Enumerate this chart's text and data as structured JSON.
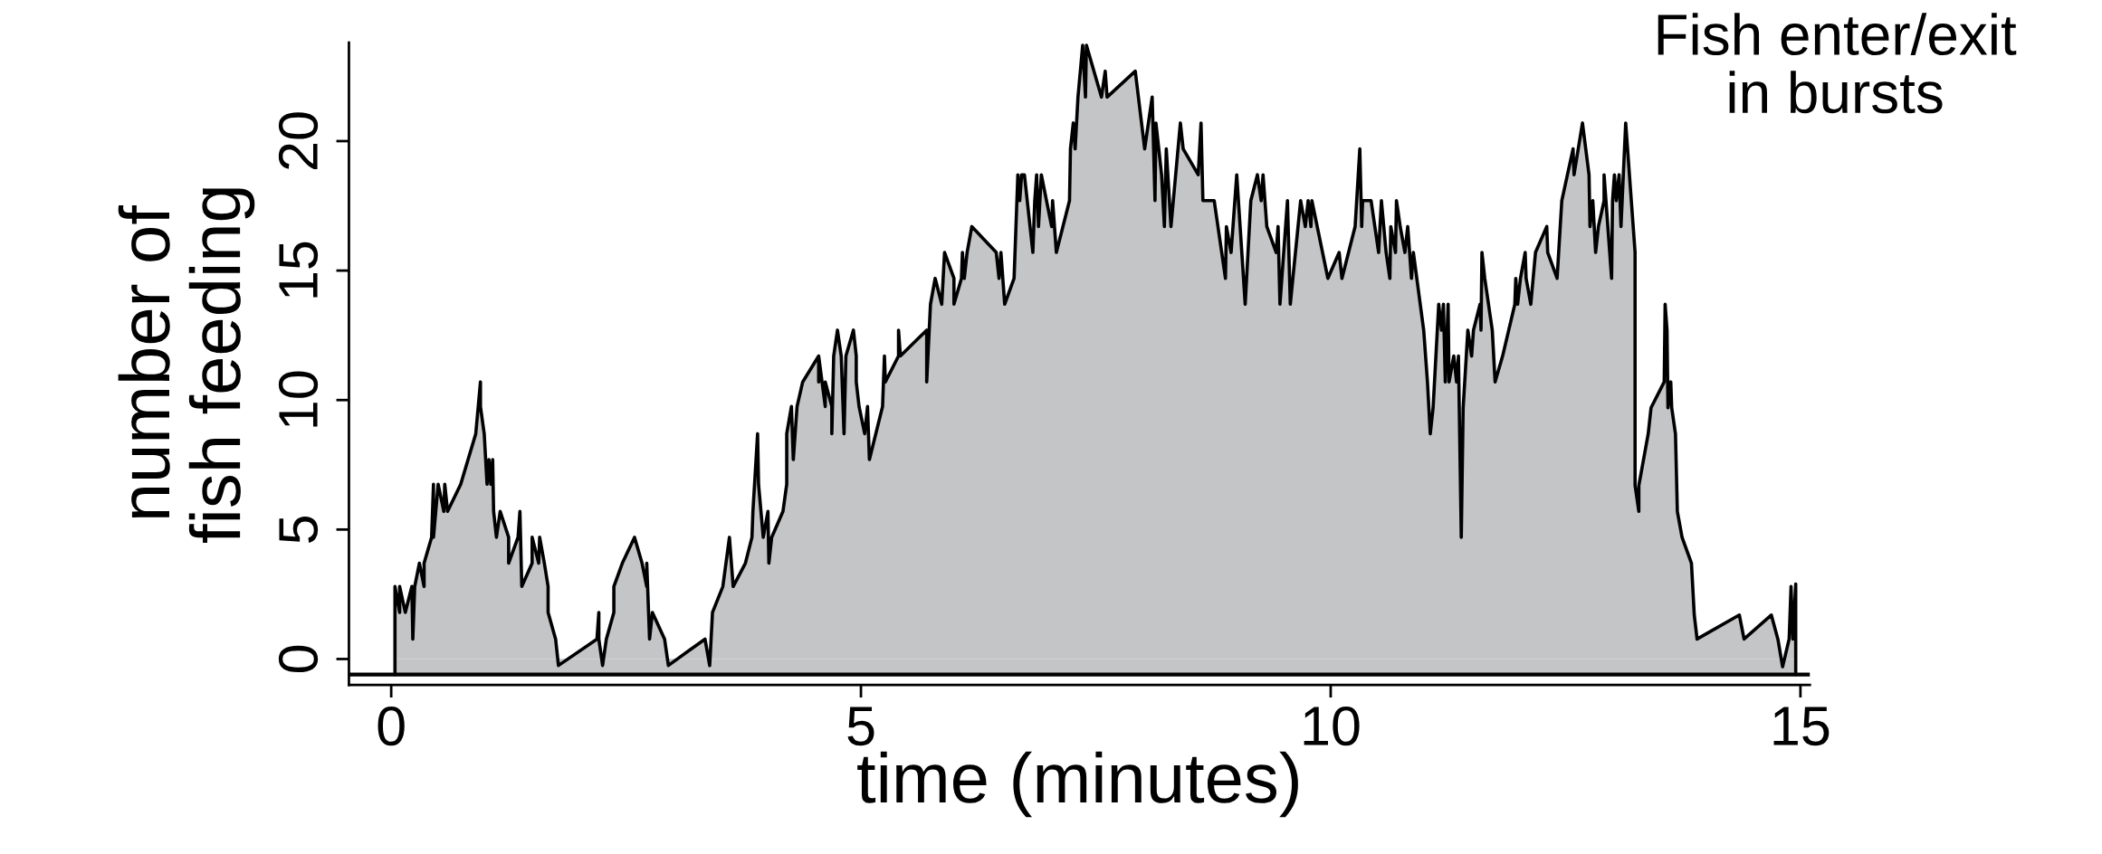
{
  "chart_data": {
    "type": "area",
    "xlabel": "time (minutes)",
    "ylabel": "number of\nfish feeding",
    "annotations": [
      "Fish enter/exit\nin bursts"
    ],
    "xlim": [
      -0.45,
      15.1
    ],
    "ylim": [
      -1.0,
      23.8
    ],
    "xticks": [
      0,
      5,
      10,
      15
    ],
    "yticks": [
      0,
      5,
      10,
      15,
      20
    ],
    "grid": false,
    "legend": false,
    "ref_lines": [
      {
        "axis": "y",
        "value": -0.6,
        "color": "#000000"
      }
    ],
    "bands": [
      {
        "axis": "y",
        "from": -0.6,
        "to": 0,
        "color": "#c4c5c7"
      }
    ],
    "series": [
      {
        "color": "#c4c5c7",
        "x": [
          0.04,
          0.04,
          0.09,
          0.09,
          0.15,
          0.22,
          0.23,
          0.25,
          0.3,
          0.35,
          0.35,
          0.43,
          0.45,
          0.45,
          0.5,
          0.56,
          0.57,
          0.6,
          0.74,
          0.9,
          0.95,
          0.95,
          0.99,
          1.02,
          1.04,
          1.06,
          1.08,
          1.09,
          1.12,
          1.16,
          1.25,
          1.25,
          1.35,
          1.37,
          1.39,
          1.5,
          1.5,
          1.57,
          1.58,
          1.63,
          1.67,
          1.67,
          1.75,
          1.78,
          2.19,
          2.21,
          2.21,
          2.25,
          2.29,
          2.37,
          2.37,
          2.46,
          2.59,
          2.67,
          2.72,
          2.72,
          2.75,
          2.78,
          2.91,
          2.95,
          3.34,
          3.39,
          3.42,
          3.53,
          3.6,
          3.64,
          3.77,
          3.84,
          3.85,
          3.9,
          3.91,
          3.96,
          4.01,
          4.02,
          4.05,
          4.17,
          4.21,
          4.21,
          4.26,
          4.28,
          4.32,
          4.38,
          4.55,
          4.55,
          4.55,
          4.62,
          4.62,
          4.69,
          4.69,
          4.71,
          4.75,
          4.79,
          4.82,
          4.84,
          4.92,
          4.95,
          4.95,
          4.98,
          5.04,
          5.07,
          5.09,
          5.23,
          5.25,
          5.26,
          5.4,
          5.4,
          5.42,
          5.7,
          5.7,
          5.74,
          5.79,
          5.86,
          5.89,
          5.99,
          5.99,
          6.07,
          6.08,
          6.1,
          6.13,
          6.18,
          6.44,
          6.47,
          6.49,
          6.53,
          6.63,
          6.67,
          6.69,
          6.71,
          6.74,
          6.83,
          6.85,
          6.87,
          6.89,
          6.92,
          7.03,
          7.04,
          7.08,
          7.22,
          7.23,
          7.26,
          7.28,
          7.31,
          7.36,
          7.39,
          7.4,
          7.56,
          7.6,
          7.62,
          7.92,
          8.02,
          8.1,
          8.13,
          8.14,
          8.2,
          8.23,
          8.25,
          8.3,
          8.4,
          8.43,
          8.59,
          8.62,
          8.64,
          8.76,
          8.88,
          8.89,
          8.94,
          9.0,
          9.09,
          9.15,
          9.22,
          9.26,
          9.28,
          9.32,
          9.42,
          9.44,
          9.46,
          9.54,
          9.57,
          9.68,
          9.73,
          9.76,
          9.79,
          9.8,
          9.97,
          10.09,
          10.12,
          10.26,
          10.31,
          10.33,
          10.34,
          10.43,
          10.51,
          10.54,
          10.59,
          10.63,
          10.64,
          10.69,
          10.7,
          10.74,
          10.79,
          10.82,
          10.86,
          10.88,
          10.99,
          11.03,
          11.06,
          11.09,
          11.15,
          11.18,
          11.2,
          11.22,
          11.25,
          11.26,
          11.31,
          11.34,
          11.36,
          11.39,
          11.41,
          11.46,
          11.5,
          11.52,
          11.59,
          11.6,
          11.61,
          11.64,
          11.72,
          11.75,
          11.83,
          11.96,
          11.97,
          11.99,
          12.02,
          12.07,
          12.08,
          12.13,
          12.18,
          12.3,
          12.31,
          12.41,
          12.46,
          12.52,
          12.58,
          12.59,
          12.68,
          12.75,
          12.76,
          12.79,
          12.82,
          12.85,
          12.91,
          12.91,
          12.99,
          13.0,
          13.02,
          13.04,
          13.07,
          13.09,
          13.14,
          13.2,
          13.24,
          13.24,
          13.28,
          13.28,
          13.38,
          13.41,
          13.55,
          13.56,
          13.58,
          13.59,
          13.62,
          13.63,
          13.67,
          13.69,
          13.74,
          13.84,
          13.87,
          13.9,
          14.35,
          14.4,
          14.69,
          14.76,
          14.81,
          14.88,
          14.9,
          14.92,
          14.95,
          14.95
        ],
        "values": [
          -0.6,
          2.8,
          1.8,
          2.8,
          1.8,
          2.8,
          0.77,
          2.8,
          3.7,
          2.8,
          3.7,
          4.7,
          6.75,
          4.7,
          6.75,
          5.7,
          6.75,
          5.7,
          6.75,
          8.7,
          10.7,
          9.75,
          8.7,
          6.75,
          7.7,
          6.75,
          7.7,
          5.7,
          4.7,
          5.7,
          4.7,
          3.7,
          4.7,
          5.7,
          2.8,
          3.7,
          4.7,
          3.7,
          4.7,
          3.7,
          2.8,
          1.8,
          0.77,
          -0.25,
          0.77,
          1.8,
          0.77,
          -0.25,
          0.77,
          1.8,
          2.8,
          3.7,
          4.7,
          3.7,
          2.8,
          3.7,
          0.77,
          1.8,
          0.77,
          -0.25,
          0.77,
          -0.25,
          1.8,
          2.8,
          4.7,
          2.8,
          3.7,
          4.7,
          5.7,
          8.7,
          6.75,
          4.7,
          5.7,
          3.7,
          4.7,
          5.7,
          6.75,
          8.7,
          9.75,
          7.7,
          9.75,
          10.7,
          11.7,
          10.7,
          11.7,
          9.75,
          10.7,
          9.75,
          8.7,
          11.7,
          12.7,
          11.7,
          8.7,
          11.7,
          12.7,
          11.7,
          10.7,
          9.75,
          8.7,
          9.75,
          7.7,
          9.75,
          11.7,
          10.7,
          11.7,
          12.7,
          11.7,
          12.7,
          10.7,
          13.7,
          14.7,
          13.7,
          15.7,
          14.7,
          13.7,
          14.7,
          15.7,
          14.7,
          15.7,
          16.7,
          15.7,
          14.7,
          15.7,
          13.7,
          14.7,
          18.7,
          17.7,
          18.7,
          18.7,
          15.7,
          17.7,
          18.7,
          16.7,
          18.7,
          16.7,
          17.7,
          15.7,
          17.7,
          19.7,
          20.7,
          19.7,
          21.7,
          23.7,
          21.7,
          23.7,
          21.7,
          22.7,
          21.7,
          22.7,
          19.7,
          21.7,
          17.7,
          20.7,
          18.7,
          16.7,
          19.7,
          16.7,
          20.7,
          19.7,
          18.7,
          20.7,
          17.7,
          17.7,
          14.7,
          16.7,
          15.7,
          18.7,
          13.7,
          17.7,
          18.7,
          17.7,
          18.7,
          16.7,
          15.7,
          16.7,
          13.7,
          17.7,
          13.7,
          17.7,
          16.7,
          17.7,
          16.7,
          17.7,
          14.7,
          15.7,
          14.7,
          16.7,
          19.7,
          16.7,
          17.7,
          17.7,
          15.7,
          17.7,
          15.7,
          14.7,
          16.7,
          15.7,
          17.7,
          16.7,
          15.7,
          16.7,
          14.7,
          15.7,
          12.7,
          10.7,
          8.7,
          9.7,
          13.7,
          12.7,
          13.7,
          10.7,
          13.7,
          10.7,
          11.7,
          10.7,
          11.7,
          4.7,
          9.7,
          12.7,
          11.7,
          12.7,
          13.7,
          12.7,
          15.7,
          14.7,
          12.7,
          10.7,
          11.7,
          13.7,
          14.7,
          13.7,
          14.7,
          15.7,
          14.7,
          13.7,
          15.7,
          16.7,
          15.7,
          14.7,
          17.7,
          18.7,
          19.7,
          18.7,
          20.7,
          18.7,
          16.7,
          17.7,
          15.7,
          16.7,
          17.7,
          18.7,
          14.7,
          17.7,
          18.7,
          17.7,
          18.7,
          16.7,
          20.7,
          17.7,
          15.7,
          6.7,
          5.7,
          6.7,
          8.7,
          9.7,
          10.7,
          13.7,
          12.7,
          9.7,
          10.7,
          9.7,
          8.7,
          5.7,
          4.7,
          3.7,
          1.7,
          0.77,
          1.7,
          0.77,
          1.7,
          0.77,
          -0.3,
          0.77,
          2.8,
          0.77,
          2.9,
          -0.6
        ]
      }
    ]
  }
}
